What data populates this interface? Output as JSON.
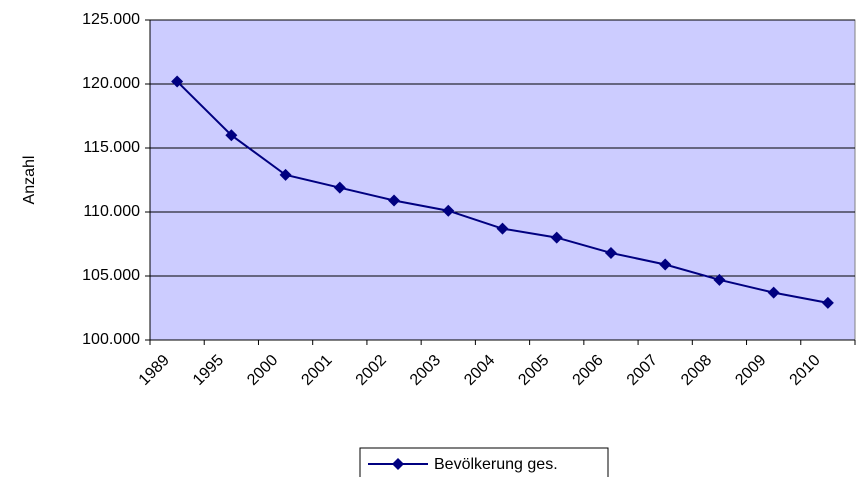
{
  "chart_data": {
    "type": "line",
    "y_label": "Anzahl",
    "categories": [
      "1989",
      "1995",
      "2000",
      "2001",
      "2002",
      "2003",
      "2004",
      "2005",
      "2006",
      "2007",
      "2008",
      "2009",
      "2010"
    ],
    "series": [
      {
        "name": "Bevölkerung ges.",
        "color": "#000080",
        "values": [
          120200,
          116000,
          112900,
          111900,
          110900,
          110100,
          108700,
          108000,
          106800,
          105900,
          104700,
          103700,
          102900
        ]
      }
    ],
    "ylim": [
      100000,
      125000
    ],
    "yticks": [
      {
        "value": 100000,
        "label": "100.000"
      },
      {
        "value": 105000,
        "label": "105.000"
      },
      {
        "value": 110000,
        "label": "110.000"
      },
      {
        "value": 115000,
        "label": "115.000"
      },
      {
        "value": 120000,
        "label": "120.000"
      },
      {
        "value": 125000,
        "label": "125.000"
      }
    ],
    "grid": true,
    "plot_background": "#ccccff",
    "legend": "bottom"
  }
}
